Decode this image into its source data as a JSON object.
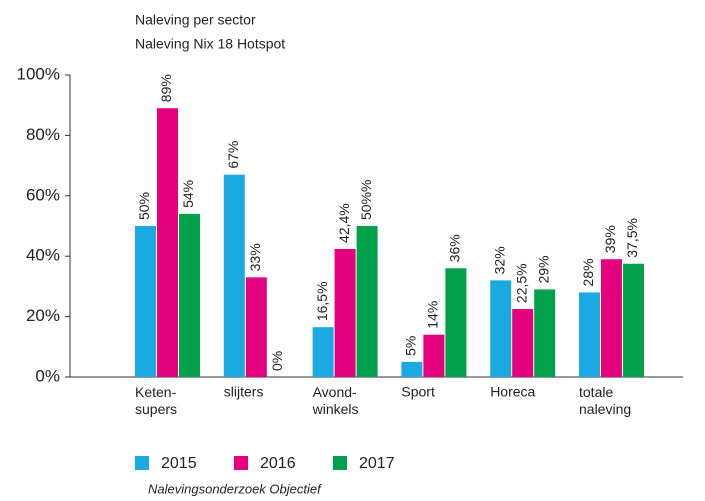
{
  "chart_data": {
    "type": "bar",
    "title": "Naleving per sector",
    "subtitle": "Naleving Nix 18 Hotspot",
    "source": "Nalevingsonderzoek Objectief",
    "categories": [
      "Keten-\nsupers",
      "slijters",
      "Avond-\nwinkels",
      "Sport",
      "Horeca",
      "totale\nnaleving"
    ],
    "series": [
      {
        "name": "2015",
        "color": "#1ba9e1",
        "values": [
          50,
          67,
          16.5,
          5,
          32,
          28
        ],
        "value_labels": [
          "50%",
          "67%",
          "16,5%",
          "5%",
          "32%",
          "28%"
        ]
      },
      {
        "name": "2016",
        "color": "#e5007e",
        "values": [
          89,
          33,
          42.4,
          14,
          22.5,
          39
        ],
        "value_labels": [
          "89%",
          "33%",
          "42,4%",
          "14%",
          "22,5%",
          "39%"
        ]
      },
      {
        "name": "2017",
        "color": "#00a14b",
        "values": [
          54,
          0,
          50,
          36,
          29,
          37.5
        ],
        "value_labels": [
          "54%",
          "0%",
          "50%%",
          "36%",
          "29%",
          "37,5%"
        ]
      }
    ],
    "ylim": [
      0,
      100
    ],
    "yticks": [
      {
        "value": 0,
        "label": "0%"
      },
      {
        "value": 20,
        "label": "20%"
      },
      {
        "value": 40,
        "label": "40%"
      },
      {
        "value": 60,
        "label": "60%"
      },
      {
        "value": 80,
        "label": "80%"
      },
      {
        "value": 100,
        "label": "100%"
      }
    ],
    "grid": false
  }
}
